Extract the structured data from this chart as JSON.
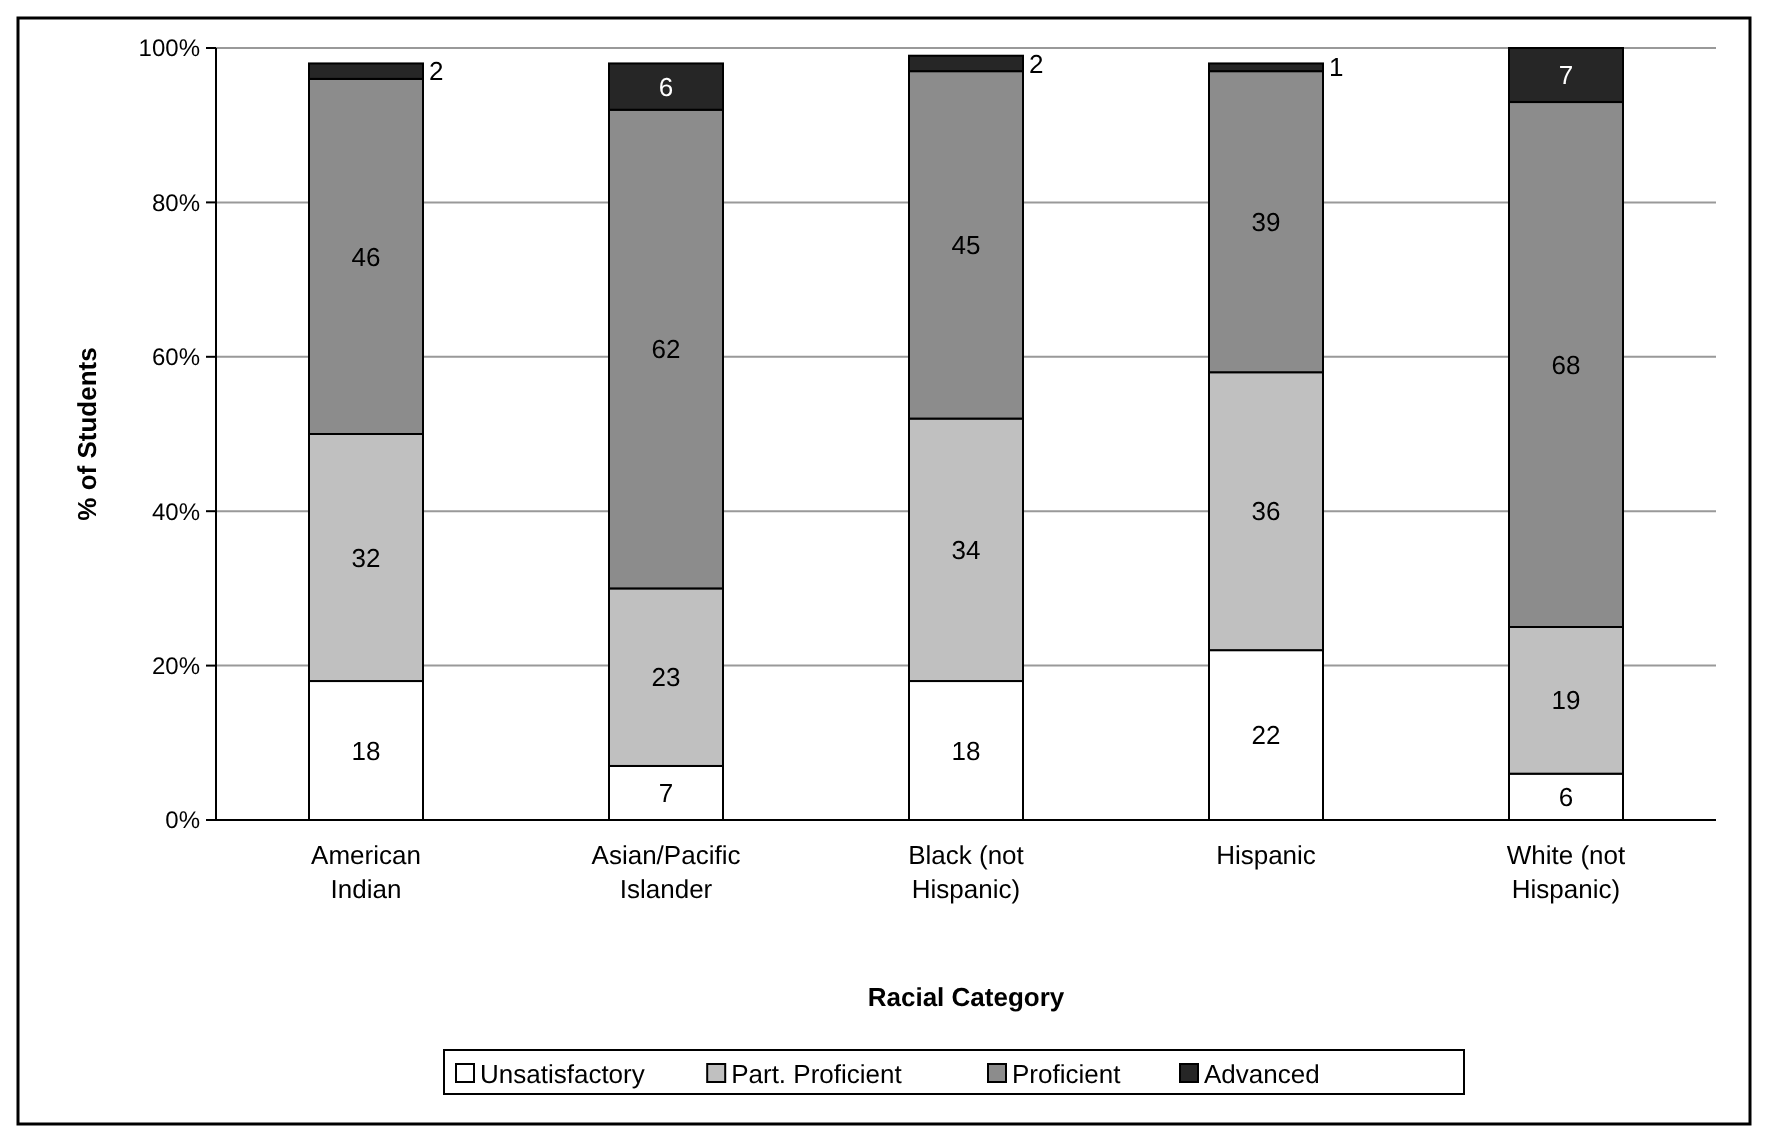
{
  "chart_data": {
    "type": "bar",
    "stacked": true,
    "xlabel": "Racial Category",
    "ylabel": "% of Students",
    "categories": [
      "American Indian",
      "Asian/Pacific Islander",
      "Black (not Hispanic)",
      "Hispanic",
      "White (not Hispanic)"
    ],
    "series": [
      {
        "name": "Unsatisfactory",
        "color": "#ffffff",
        "values": [
          18,
          7,
          18,
          22,
          6
        ]
      },
      {
        "name": "Part. Proficient",
        "color": "#c0c0c0",
        "values": [
          32,
          23,
          34,
          36,
          19
        ]
      },
      {
        "name": "Proficient",
        "color": "#8c8c8c",
        "values": [
          46,
          62,
          45,
          39,
          68
        ]
      },
      {
        "name": "Advanced",
        "color": "#262626",
        "values": [
          2,
          6,
          2,
          1,
          7
        ]
      }
    ],
    "ylim": [
      0,
      100
    ],
    "yticks": [
      {
        "value": 0,
        "label": "0%"
      },
      {
        "value": 20,
        "label": "20%"
      },
      {
        "value": 40,
        "label": "40%"
      },
      {
        "value": 60,
        "label": "60%"
      },
      {
        "value": 80,
        "label": "80%"
      },
      {
        "value": 100,
        "label": "100%"
      }
    ],
    "grid": "y",
    "legend": "bottom",
    "data_labels": true
  }
}
